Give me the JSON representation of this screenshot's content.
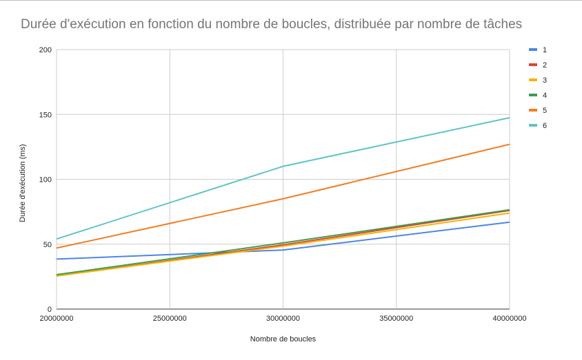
{
  "chart_data": {
    "type": "line",
    "title": "Durée d'exécution en fonction du nombre de boucles, distribuée par nombre de tâches",
    "xlabel": "Nombre de boucles",
    "ylabel": "Durée d'exécution (ms)",
    "x": [
      20000000,
      30000000,
      40000000
    ],
    "x_ticks": [
      "20000000",
      "25000000",
      "30000000",
      "35000000",
      "40000000"
    ],
    "y_ticks": [
      "0",
      "50",
      "100",
      "150",
      "200"
    ],
    "xlim": [
      20000000,
      40000000
    ],
    "ylim": [
      0,
      200
    ],
    "grid": true,
    "legend": "right",
    "series": [
      {
        "name": "1",
        "color": "#4a86e8",
        "values": [
          38.5,
          45.5,
          67
        ]
      },
      {
        "name": "2",
        "color": "#db4437",
        "values": [
          25.5,
          49.5,
          76
        ]
      },
      {
        "name": "3",
        "color": "#f4b400",
        "values": [
          25.5,
          48.5,
          74
        ]
      },
      {
        "name": "4",
        "color": "#3d9e4d",
        "values": [
          26.5,
          51,
          76.5
        ]
      },
      {
        "name": "5",
        "color": "#f57c1f",
        "values": [
          47,
          85,
          127
        ]
      },
      {
        "name": "6",
        "color": "#5ec4c4",
        "values": [
          54,
          110,
          147.5
        ]
      }
    ]
  }
}
